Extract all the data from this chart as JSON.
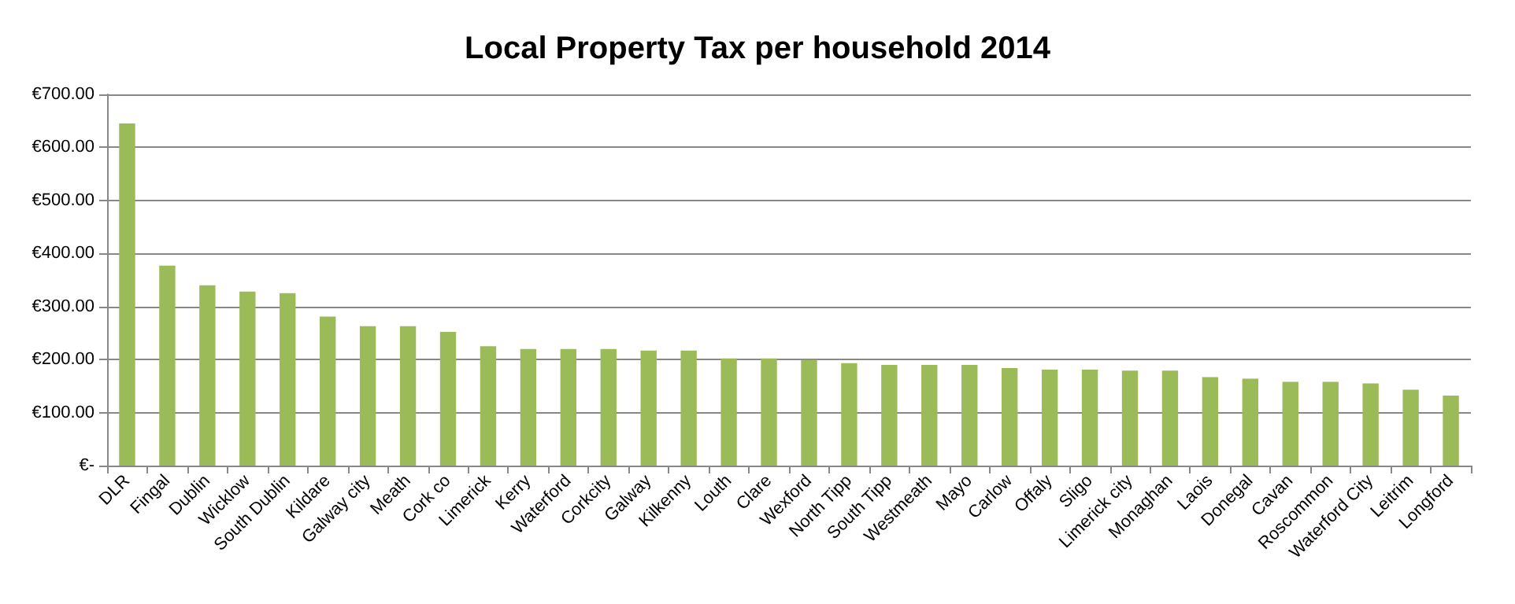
{
  "chart_data": {
    "type": "bar",
    "title": "Local Property Tax per household 2014",
    "categories": [
      "DLR",
      "Fingal",
      "Dublin",
      "Wicklow",
      "South Dublin",
      "Kildare",
      "Galway city",
      "Meath",
      "Cork co",
      "Limerick",
      "Kerry",
      "Waterford",
      "Corkcity",
      "Galway",
      "Kilkenny",
      "Louth",
      "Clare",
      "Wexford",
      "North Tipp",
      "South Tipp",
      "Westmeath",
      "Mayo",
      "Carlow",
      "Offaly",
      "Sligo",
      "Limerick city",
      "Monaghan",
      "Laois",
      "Donegal",
      "Cavan",
      "Roscommon",
      "Waterford City",
      "Leitrim",
      "Longford"
    ],
    "values": [
      645,
      377,
      340,
      328,
      325,
      281,
      263,
      263,
      252,
      225,
      220,
      220,
      220,
      217,
      217,
      202,
      202,
      199,
      193,
      190,
      190,
      190,
      184,
      181,
      181,
      179,
      179,
      167,
      164,
      158,
      158,
      155,
      143,
      132
    ],
    "color": "#9bbb59",
    "ylim": [
      0,
      700
    ],
    "yticks": [
      {
        "value": 0,
        "label": "€-"
      },
      {
        "value": 100,
        "label": "€100.00"
      },
      {
        "value": 200,
        "label": "€200.00"
      },
      {
        "value": 300,
        "label": "€300.00"
      },
      {
        "value": 400,
        "label": "€400.00"
      },
      {
        "value": 500,
        "label": "€500.00"
      },
      {
        "value": 600,
        "label": "€600.00"
      },
      {
        "value": 700,
        "label": "€700.00"
      }
    ],
    "grid": "y"
  }
}
